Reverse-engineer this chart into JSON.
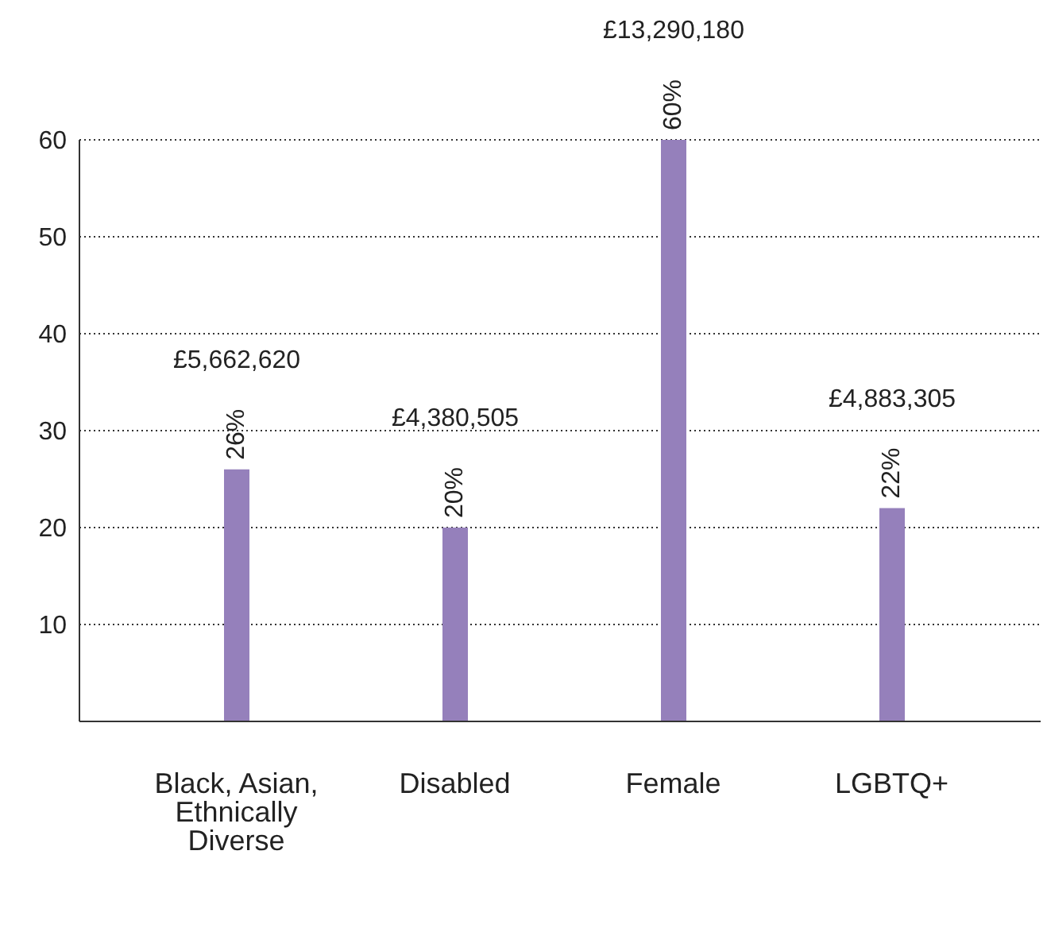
{
  "chart_data": {
    "type": "bar",
    "categories": [
      "Black, Asian, Ethnically Diverse",
      "Disabled",
      "Female",
      "LGBTQ+"
    ],
    "values": [
      26,
      20,
      60,
      22
    ],
    "color": "#9580bb",
    "value_labels": [
      "26%",
      "20%",
      "60%",
      "22%"
    ],
    "annotations": [
      "£5,662,620",
      "£4,380,505",
      "£13,290,180",
      "£4,883,305"
    ],
    "ylim": [
      0,
      60
    ],
    "yticks": [
      10,
      20,
      30,
      40,
      50,
      60
    ],
    "grid": "y"
  }
}
